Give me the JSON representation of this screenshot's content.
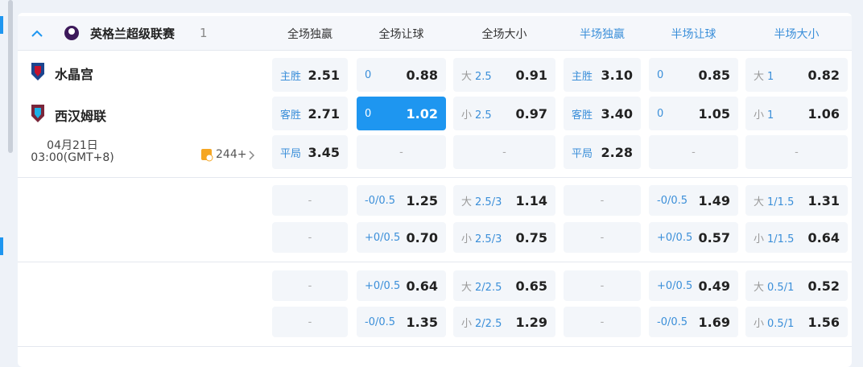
{
  "league": {
    "name": "英格兰超级联赛",
    "count": "1"
  },
  "columns": [
    "全场独赢",
    "全场让球",
    "全场大小",
    "半场独赢",
    "半场让球",
    "半场大小"
  ],
  "match": {
    "home": "水晶宫",
    "away": "西汉姆联",
    "date": "04月21日",
    "time": "03:00(GMT+8)",
    "more": "244+"
  },
  "blocks": [
    [
      [
        {
          "label": "主胜",
          "odds": "2.51"
        },
        {
          "label": "0",
          "odds": "0.88"
        },
        {
          "prefix": "大",
          "label": "2.5",
          "odds": "0.91"
        },
        {
          "label": "主胜",
          "odds": "3.10"
        },
        {
          "label": "0",
          "odds": "0.85"
        },
        {
          "prefix": "大",
          "label": "1",
          "odds": "0.82"
        }
      ],
      [
        {
          "label": "客胜",
          "odds": "2.71"
        },
        {
          "label": "0",
          "odds": "1.02",
          "selected": true
        },
        {
          "prefix": "小",
          "label": "2.5",
          "odds": "0.97"
        },
        {
          "label": "客胜",
          "odds": "3.40"
        },
        {
          "label": "0",
          "odds": "1.05"
        },
        {
          "prefix": "小",
          "label": "1",
          "odds": "1.06"
        }
      ],
      [
        {
          "label": "平局",
          "odds": "3.45"
        },
        "-",
        "-",
        {
          "label": "平局",
          "odds": "2.28"
        },
        "-",
        "-"
      ]
    ],
    [
      [
        "-",
        {
          "label": "-0/0.5",
          "odds": "1.25"
        },
        {
          "prefix": "大",
          "label": "2.5/3",
          "odds": "1.14"
        },
        "-",
        {
          "label": "-0/0.5",
          "odds": "1.49"
        },
        {
          "prefix": "大",
          "label": "1/1.5",
          "odds": "1.31"
        }
      ],
      [
        "-",
        {
          "label": "+0/0.5",
          "odds": "0.70"
        },
        {
          "prefix": "小",
          "label": "2.5/3",
          "odds": "0.75"
        },
        "-",
        {
          "label": "+0/0.5",
          "odds": "0.57"
        },
        {
          "prefix": "小",
          "label": "1/1.5",
          "odds": "0.64"
        }
      ]
    ],
    [
      [
        "-",
        {
          "label": "+0/0.5",
          "odds": "0.64"
        },
        {
          "prefix": "大",
          "label": "2/2.5",
          "odds": "0.65"
        },
        "-",
        {
          "label": "+0/0.5",
          "odds": "0.49"
        },
        {
          "prefix": "大",
          "label": "0.5/1",
          "odds": "0.52"
        }
      ],
      [
        "-",
        {
          "label": "-0/0.5",
          "odds": "1.35"
        },
        {
          "prefix": "小",
          "label": "2/2.5",
          "odds": "1.29"
        },
        "-",
        {
          "label": "-0/0.5",
          "odds": "1.69"
        },
        {
          "prefix": "小",
          "label": "0.5/1",
          "odds": "1.56"
        }
      ]
    ]
  ]
}
